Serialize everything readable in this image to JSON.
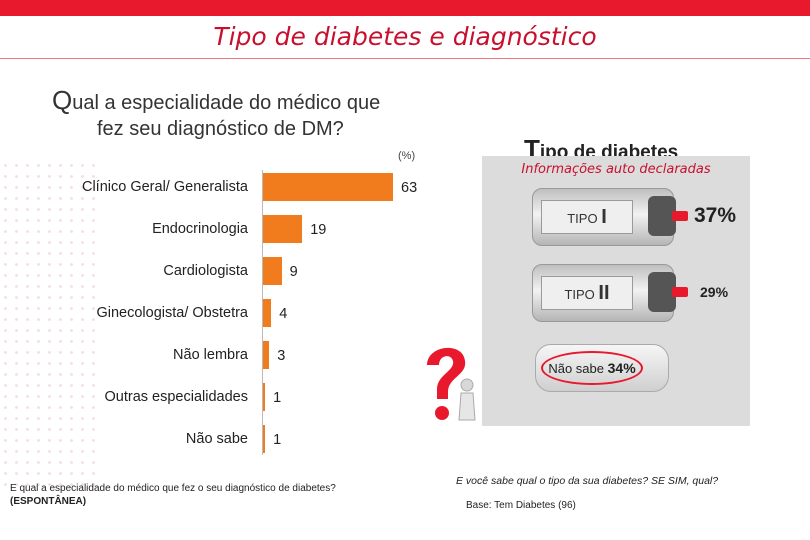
{
  "title": "Tipo de diabetes e diagnóstico",
  "question": {
    "first_letter": "Q",
    "line1_rest": "ual a especialidade do médico que",
    "line2": "fez seu diagnóstico de DM?"
  },
  "unit": "(%)",
  "chart_data": {
    "type": "bar",
    "orientation": "horizontal",
    "categories": [
      "Clínico Geral/ Generalista",
      "Endocrinologia",
      "Cardiologista",
      "Ginecologista/ Obstetra",
      "Não lembra",
      "Outras especialidades",
      "Não sabe"
    ],
    "values": [
      63,
      19,
      9,
      4,
      3,
      1,
      1
    ],
    "xlim": [
      0,
      63
    ],
    "bar_color": "#f07c1e"
  },
  "footnote_left": {
    "line1": "E qual a especialidade do médico que fez o seu  diagnóstico de diabetes?",
    "line2": "(ESPONTÂNEA)"
  },
  "diabetes_type": {
    "heading_first": "T",
    "heading_rest": "ipo de diabetes",
    "subtitle": "Informações auto declaradas",
    "items": [
      {
        "label": "TIPO",
        "numeral": "I",
        "percent": "37%"
      },
      {
        "label": "TIPO",
        "numeral": "II",
        "percent": "29%"
      },
      {
        "label": "Não sabe",
        "percent": "34%"
      }
    ],
    "question": "E você sabe qual o tipo da sua diabetes? SE SIM, qual?",
    "base": "Base: Tem Diabetes (96)"
  },
  "colors": {
    "accent": "#e8192c",
    "title": "#c8102e",
    "bar": "#f07c1e"
  }
}
